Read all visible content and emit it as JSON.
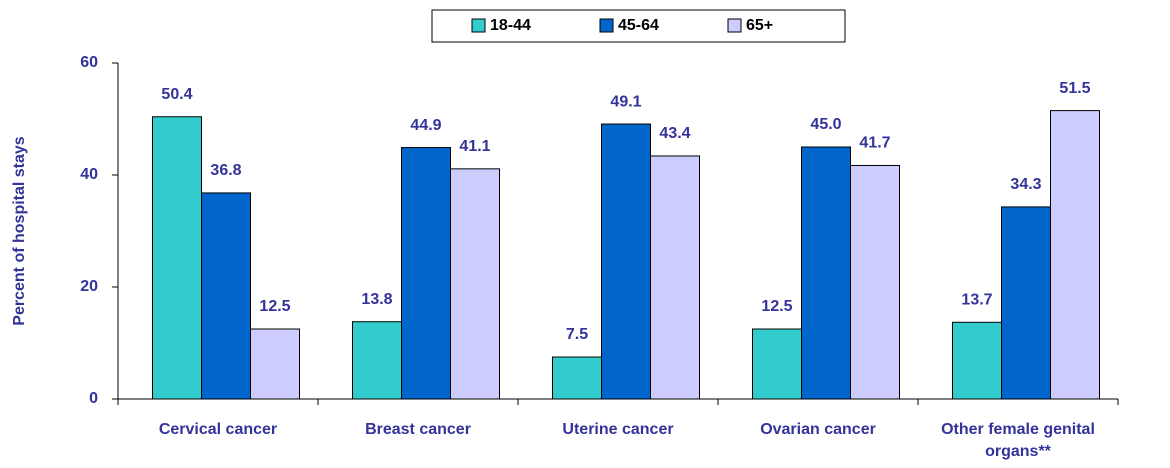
{
  "chart_data": {
    "type": "bar",
    "categories": [
      "Cervical cancer",
      "Breast cancer",
      "Uterine cancer",
      "Ovarian cancer",
      "Other female genital organs**"
    ],
    "series": [
      {
        "name": "18-44",
        "color": "#33cccc",
        "values": [
          50.4,
          13.8,
          7.5,
          12.5,
          13.7
        ],
        "value_labels": [
          "50.4",
          "13.8",
          "7.5",
          "12.5",
          "13.7"
        ]
      },
      {
        "name": "45-64",
        "color": "#0066cc",
        "values": [
          36.8,
          44.9,
          49.1,
          45.0,
          34.3
        ],
        "value_labels": [
          "36.8",
          "44.9",
          "49.1",
          "45.0",
          "34.3"
        ]
      },
      {
        "name": "65+",
        "color": "#ccccff",
        "values": [
          12.5,
          41.1,
          43.4,
          41.7,
          51.5
        ],
        "value_labels": [
          "12.5",
          "41.1",
          "43.4",
          "41.7",
          "51.5"
        ]
      }
    ],
    "y_label": "Percent of hospital stays",
    "ylim": [
      0,
      60
    ],
    "yticks": [
      0,
      20,
      40,
      60
    ],
    "legend": "top"
  }
}
